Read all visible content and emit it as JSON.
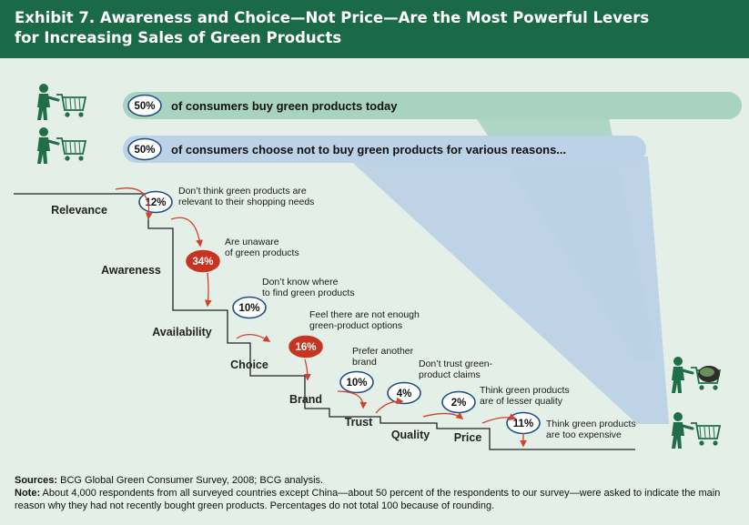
{
  "header": {
    "title_line1": "Exhibit 7. Awareness and Choice—Not Price—Are the Most Powerful Levers",
    "title_line2": "for Increasing Sales of Green Products"
  },
  "colors": {
    "header_bg": "#1a6a47",
    "background": "#e4efe8",
    "band_green": "#a8d3c1",
    "band_blue": "#bcd2e6",
    "highlight_red": "#c8341f",
    "arrow_red": "#d2412a",
    "figure_green": "#1f6e47"
  },
  "icons": [
    "shopper-with-empty-cart-icon",
    "shopper-with-full-cart-icon"
  ],
  "bands": [
    {
      "pct": "50%",
      "text": "of consumers buy green products today"
    },
    {
      "pct": "50%",
      "text": "of consumers choose not to buy green products for various reasons..."
    }
  ],
  "chart_data": {
    "type": "waterfall",
    "title": "",
    "unit": "percent of respondents",
    "steps": [
      {
        "category": "Relevance",
        "value": 12,
        "label": "12%",
        "reason": [
          "Don’t think green products are",
          "relevant to their shopping needs"
        ],
        "highlight": false
      },
      {
        "category": "Awareness",
        "value": 34,
        "label": "34%",
        "reason": [
          "Are unaware",
          "of green products"
        ],
        "highlight": true
      },
      {
        "category": "Availability",
        "value": 10,
        "label": "10%",
        "reason": [
          "Don’t know where",
          "to find green products"
        ],
        "highlight": false
      },
      {
        "category": "Choice",
        "value": 16,
        "label": "16%",
        "reason": [
          "Feel there are not enough",
          "green-product options"
        ],
        "highlight": true
      },
      {
        "category": "Brand",
        "value": 10,
        "label": "10%",
        "reason": [
          "Prefer another",
          "brand"
        ],
        "highlight": false
      },
      {
        "category": "Trust",
        "value": 4,
        "label": "4%",
        "reason": [
          "Don’t trust green-",
          "product claims"
        ],
        "highlight": false
      },
      {
        "category": "Quality",
        "value": 2,
        "label": "2%",
        "reason": [
          "Think green products",
          "are of lesser quality"
        ],
        "highlight": false
      },
      {
        "category": "Price",
        "value": 11,
        "label": "11%",
        "reason": [
          "Think green products",
          "are too expensive"
        ],
        "highlight": false
      }
    ]
  },
  "footer": {
    "sources_label": "Sources:",
    "sources_text": " BCG Global Green Consumer Survey, 2008; BCG analysis.",
    "note_label": "Note:",
    "note_text": " About 4,000 respondents from all surveyed countries except China—about 50 percent of the respondents to our survey—were asked to indicate the main reason why they had not recently bought green products. Percentages do not total 100 because of rounding."
  }
}
